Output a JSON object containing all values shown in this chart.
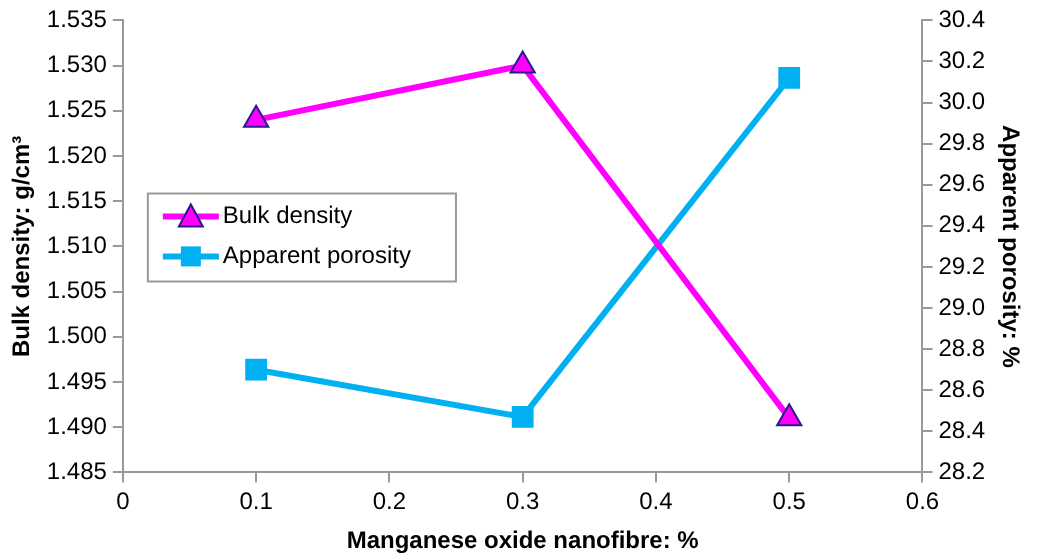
{
  "chart_data": {
    "type": "line",
    "xlabel": "Manganese oxide nanofibre: %",
    "ylabel": "Bulk density: g/cm³",
    "y2label": "Apparent porosity: %",
    "x": [
      0.1,
      0.3,
      0.5
    ],
    "series": [
      {
        "name": "Bulk density",
        "color": "#ff00ff",
        "marker": "triangle",
        "values": [
          1.524,
          1.53,
          1.491
        ]
      },
      {
        "name": "Apparent porosity",
        "color": "#00b0f0",
        "marker": "square",
        "axis": "y2",
        "values": [
          28.7,
          28.47,
          30.12
        ]
      }
    ],
    "xlim": [
      0,
      0.6
    ],
    "xticks": [
      0,
      0.1,
      0.2,
      0.3,
      0.4,
      0.5,
      0.6
    ],
    "ylim": [
      1.485,
      1.535
    ],
    "yticks": [
      1.485,
      {
        "value": 1.49,
        "label": "1.490"
      },
      1.495,
      {
        "value": 1.5,
        "label": "1.500"
      },
      1.505,
      {
        "value": 1.51,
        "label": "1.510"
      },
      1.515,
      {
        "value": 1.52,
        "label": "1.520"
      },
      1.525,
      {
        "value": 1.53,
        "label": "1.530"
      },
      1.535
    ],
    "y2lim": [
      28.2,
      30.4
    ],
    "y2ticks": [
      28.2,
      28.4,
      28.6,
      28.8,
      {
        "value": 29,
        "label": "29.0"
      },
      29.2,
      29.4,
      29.6,
      29.8,
      {
        "value": 30,
        "label": "30.0"
      },
      30.2,
      30.4
    ],
    "grid": false,
    "legend": "left",
    "line_style": "solid"
  }
}
